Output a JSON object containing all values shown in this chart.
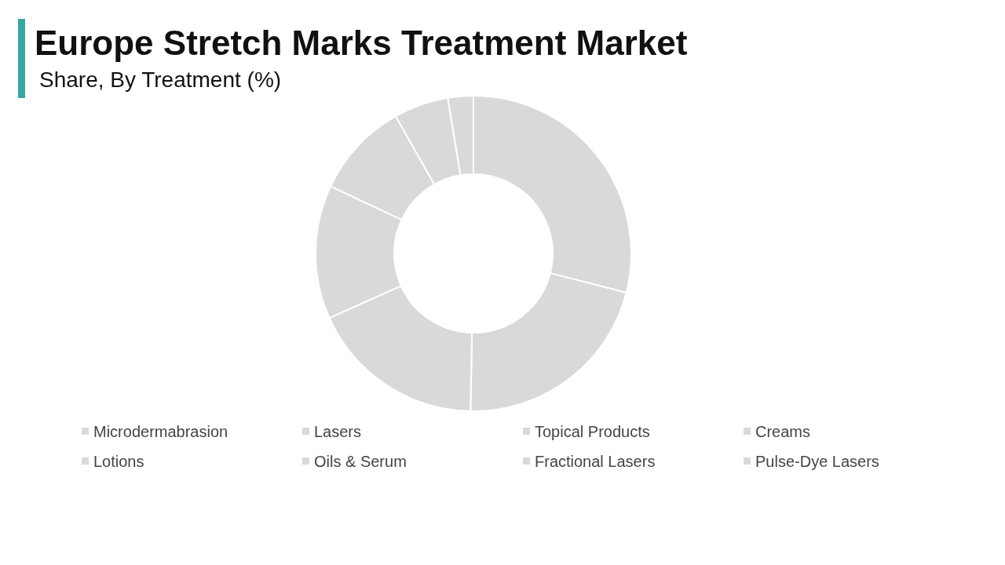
{
  "chart_data": {
    "type": "donut",
    "title": "Europe Stretch Marks Treatment Market",
    "subtitle": "Share, By Treatment (%)",
    "categories": [
      "Microdermabrasion",
      "Lasers",
      "Topical Products",
      "Creams",
      "Lotions",
      "Oils & Serum",
      "Fractional Lasers",
      "Pulse-Dye Lasers"
    ],
    "values": [
      29,
      21.3,
      18,
      13.7,
      9.8,
      5.6,
      2.6,
      0
    ],
    "colors": [
      "#d9d9d9",
      "#d9d9d9",
      "#d9d9d9",
      "#d9d9d9",
      "#d9d9d9",
      "#d9d9d9",
      "#d9d9d9",
      "#d9d9d9"
    ],
    "legend": "bottom"
  }
}
